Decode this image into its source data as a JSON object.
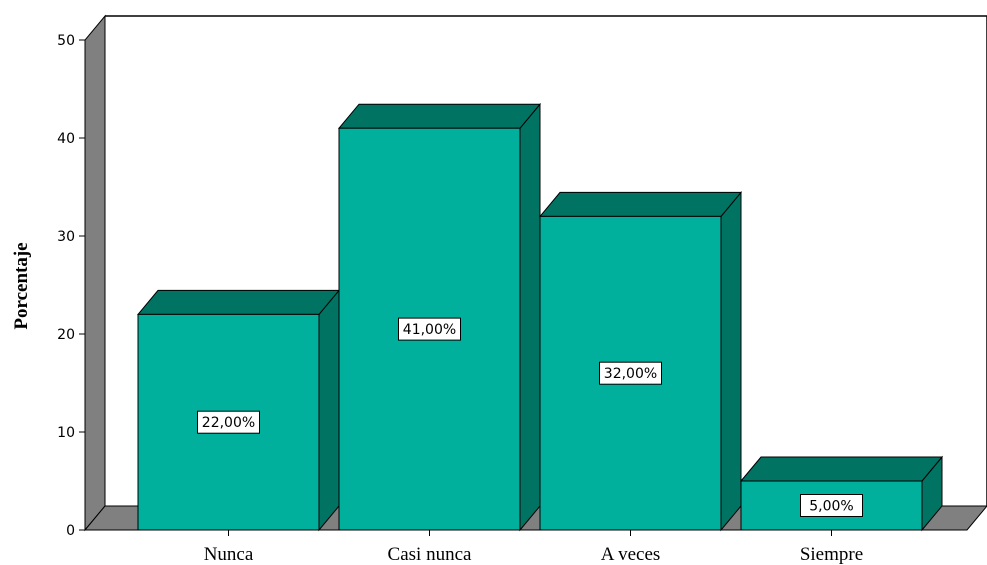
{
  "chart_data": {
    "type": "bar",
    "title": "",
    "xlabel": "",
    "ylabel": "Porcentaje",
    "categories": [
      "Nunca",
      "Casi nunca",
      "A veces",
      "Siempre"
    ],
    "values": [
      22,
      41,
      32,
      5
    ],
    "data_labels": [
      "22,00%",
      "41,00%",
      "32,00%",
      "5,00%"
    ],
    "ylim": [
      0,
      50
    ],
    "yticks": [
      "0",
      "10",
      "20",
      "30",
      "40",
      "50"
    ],
    "grid": false,
    "legend": "none",
    "style": "3d",
    "colors": {
      "bar_front": "#00B09C",
      "bar_side": "#007363",
      "wall": "#808080",
      "floor": "#808080",
      "background": "#FFFFFF"
    }
  }
}
